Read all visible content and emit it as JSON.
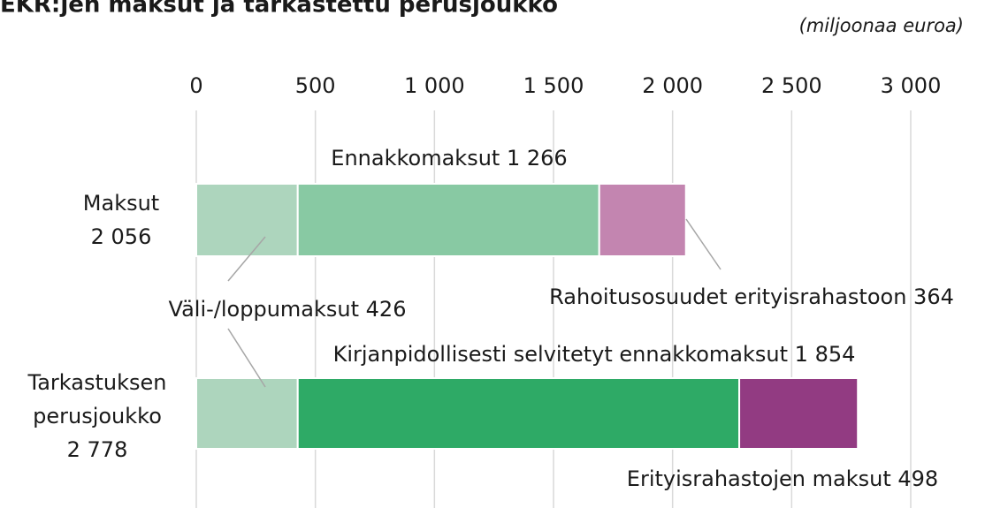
{
  "chart_data": {
    "type": "stacked-barh",
    "title": "EKR:jen maksut ja tarkastettu perusjoukko",
    "subtitle": "(miljoonaa euroa)",
    "categories": [
      "Maksut",
      "Tarkastuksen perusjoukko"
    ],
    "totals": [
      2056,
      2778
    ],
    "total_labels": [
      "2 056",
      "2 778"
    ],
    "series": [
      {
        "name": "Väli-/loppumaksut",
        "color": "#add5bd",
        "values": [
          426,
          426
        ],
        "value_labels": [
          "426",
          null
        ]
      },
      {
        "name": "Ennakkomaksut",
        "color": "#88c9a3",
        "values": [
          1266,
          null
        ],
        "value_labels": [
          "1 266",
          null
        ]
      },
      {
        "name": "Rahoitusosuudet erityisrahastoon",
        "color": "#c385b0",
        "values": [
          364,
          null
        ],
        "value_labels": [
          "364",
          null
        ]
      },
      {
        "name": "Kirjanpidollisesti selvitetyt ennakkomaksut",
        "color": "#2eaa66",
        "values": [
          null,
          1854
        ],
        "value_labels": [
          null,
          "1 854"
        ]
      },
      {
        "name": "Erityisrahastojen maksut",
        "color": "#923b82",
        "values": [
          null,
          498
        ],
        "value_labels": [
          null,
          "498"
        ]
      }
    ],
    "xlim": [
      0,
      3000
    ],
    "xticks": [
      0,
      500,
      {
        "value": 1000,
        "label": "1 000"
      },
      {
        "value": 1500,
        "label": "1 500"
      },
      {
        "value": 2000,
        "label": "2 000"
      },
      {
        "value": 2500,
        "label": "2 500"
      },
      {
        "value": 3000,
        "label": "3 000"
      }
    ],
    "grid": true
  }
}
